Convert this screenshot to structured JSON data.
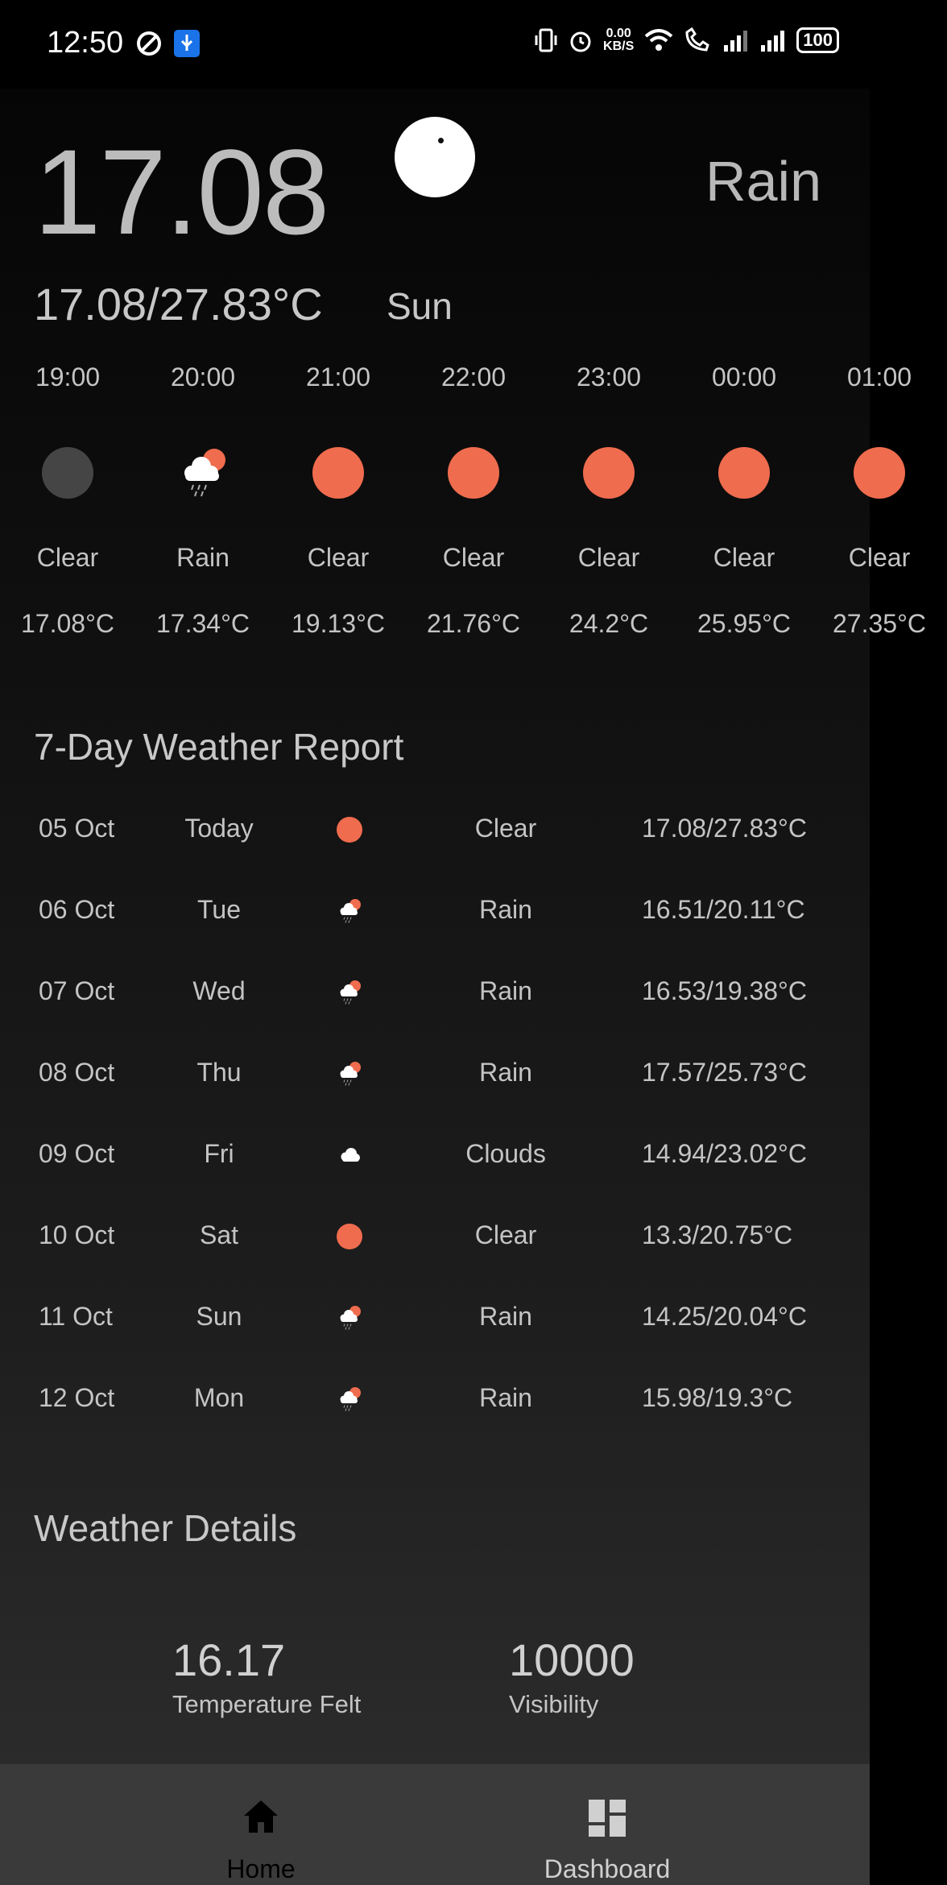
{
  "status_bar": {
    "time": "12:50",
    "net_speed_value": "0.00",
    "net_speed_unit": "KB/S",
    "battery": "100"
  },
  "current": {
    "temperature": "17.08",
    "condition": "Rain",
    "range": "17.08/27.83°C",
    "day": "Sun"
  },
  "hourly": [
    {
      "time": "19:00",
      "icon": "moon-icon",
      "condition": "Clear",
      "temp": "17.08°C"
    },
    {
      "time": "20:00",
      "icon": "rain-cloud-icon",
      "condition": "Rain",
      "temp": "17.34°C"
    },
    {
      "time": "21:00",
      "icon": "sun-icon",
      "condition": "Clear",
      "temp": "19.13°C"
    },
    {
      "time": "22:00",
      "icon": "sun-icon",
      "condition": "Clear",
      "temp": "21.76°C"
    },
    {
      "time": "23:00",
      "icon": "sun-icon",
      "condition": "Clear",
      "temp": "24.2°C"
    },
    {
      "time": "00:00",
      "icon": "sun-icon",
      "condition": "Clear",
      "temp": "25.95°C"
    },
    {
      "time": "01:00",
      "icon": "sun-icon",
      "condition": "Clear",
      "temp": "27.35°C"
    }
  ],
  "daily_title": "7-Day Weather Report",
  "daily": [
    {
      "date": "05 Oct",
      "day": "Today",
      "icon": "sun-icon",
      "condition": "Clear",
      "range": "17.08/27.83°C"
    },
    {
      "date": "06 Oct",
      "day": "Tue",
      "icon": "rain-cloud-icon",
      "condition": "Rain",
      "range": "16.51/20.11°C"
    },
    {
      "date": "07 Oct",
      "day": "Wed",
      "icon": "rain-cloud-icon",
      "condition": "Rain",
      "range": "16.53/19.38°C"
    },
    {
      "date": "08 Oct",
      "day": "Thu",
      "icon": "rain-cloud-icon",
      "condition": "Rain",
      "range": "17.57/25.73°C"
    },
    {
      "date": "09 Oct",
      "day": "Fri",
      "icon": "cloud-icon",
      "condition": "Clouds",
      "range": "14.94/23.02°C"
    },
    {
      "date": "10 Oct",
      "day": "Sat",
      "icon": "sun-icon",
      "condition": "Clear",
      "range": "13.3/20.75°C"
    },
    {
      "date": "11 Oct",
      "day": "Sun",
      "icon": "rain-cloud-icon",
      "condition": "Rain",
      "range": "14.25/20.04°C"
    },
    {
      "date": "12 Oct",
      "day": "Mon",
      "icon": "rain-cloud-icon",
      "condition": "Rain",
      "range": "15.98/19.3°C"
    }
  ],
  "details_title": "Weather Details",
  "details": {
    "temp_felt_value": "16.17",
    "temp_felt_label": "Temperature Felt",
    "visibility_value": "10000",
    "visibility_label": "Visibility"
  },
  "nav": {
    "home_label": "Home",
    "dashboard_label": "Dashboard"
  },
  "colors": {
    "sun": "#f06c4e",
    "active_nav": "#000000",
    "inactive_nav": "#d0d0d0"
  }
}
